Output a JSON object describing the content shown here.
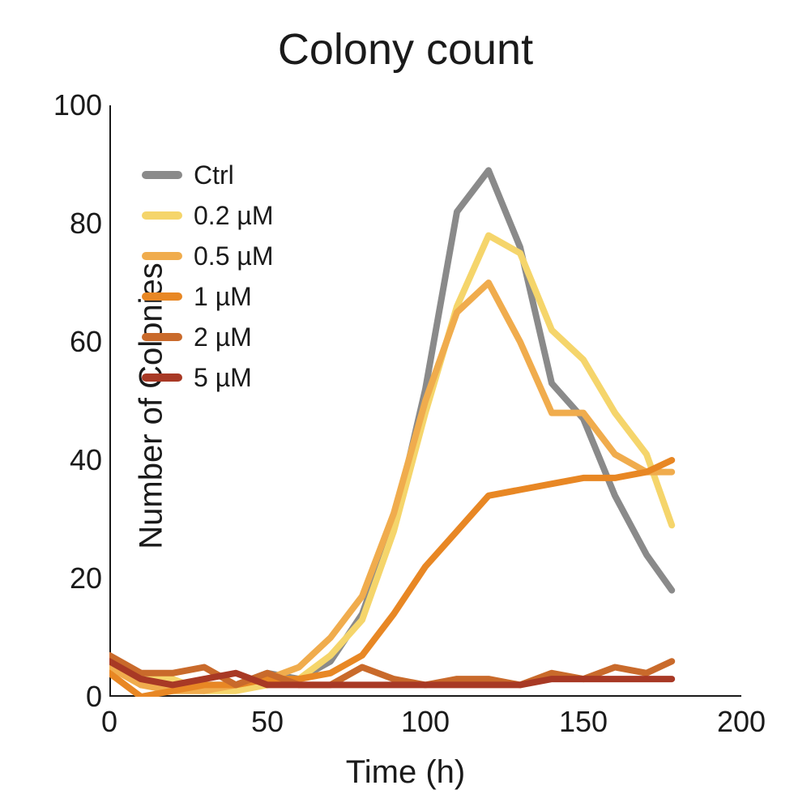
{
  "chart": {
    "type": "line",
    "title": "Colony count",
    "title_fontsize": 54,
    "xlabel": "Time (h)",
    "ylabel": "Number of Colonies",
    "label_fontsize": 40,
    "tick_fontsize": 36,
    "background_color": "#ffffff",
    "axis_color": "#1a1a1a",
    "axis_width": 4,
    "line_width": 8,
    "xlim": [
      0,
      200
    ],
    "ylim": [
      0,
      100
    ],
    "xticks": [
      0,
      50,
      100,
      150,
      200
    ],
    "yticks": [
      0,
      20,
      40,
      60,
      80,
      100
    ],
    "x_values": [
      0,
      10,
      20,
      30,
      40,
      50,
      60,
      70,
      80,
      90,
      100,
      110,
      120,
      130,
      140,
      150,
      160,
      170,
      178
    ],
    "series": [
      {
        "name": "Ctrl",
        "color": "#8a8a8a",
        "y": [
          6,
          2,
          2,
          2,
          2,
          4,
          3,
          6,
          14,
          29,
          52,
          82,
          89,
          76,
          53,
          47,
          34,
          24,
          18
        ]
      },
      {
        "name": "0.2 µM",
        "color": "#f5d56b",
        "y": [
          5,
          4,
          3,
          1,
          1,
          2,
          3,
          7,
          13,
          28,
          48,
          66,
          78,
          75,
          62,
          57,
          48,
          41,
          29
        ]
      },
      {
        "name": "0.5 µM",
        "color": "#f0ac4d",
        "y": [
          5,
          2,
          1,
          1,
          2,
          3,
          5,
          10,
          17,
          31,
          50,
          65,
          70,
          60,
          48,
          48,
          41,
          38,
          38
        ]
      },
      {
        "name": "1 µM",
        "color": "#e88724",
        "y": [
          4,
          0,
          1,
          2,
          2,
          3,
          3,
          4,
          7,
          14,
          22,
          28,
          34,
          35,
          36,
          37,
          37,
          38,
          40
        ]
      },
      {
        "name": "2 µM",
        "color": "#c96a2b",
        "y": [
          7,
          4,
          4,
          5,
          2,
          4,
          2,
          2,
          5,
          3,
          2,
          3,
          3,
          2,
          4,
          3,
          5,
          4,
          6
        ]
      },
      {
        "name": "5 µM",
        "color": "#a83925",
        "y": [
          6,
          3,
          2,
          3,
          4,
          2,
          2,
          2,
          2,
          2,
          2,
          2,
          2,
          2,
          3,
          3,
          3,
          3,
          3
        ]
      }
    ],
    "legend": {
      "position": "top-left",
      "swatch_width": 50,
      "swatch_height": 10,
      "fontsize": 32
    }
  }
}
